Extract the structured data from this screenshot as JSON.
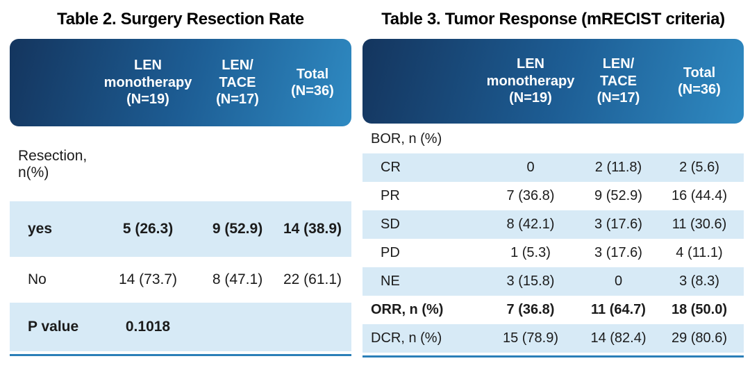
{
  "colors": {
    "header_gradient_start": "#14355e",
    "header_gradient_mid": "#1d5d94",
    "header_gradient_end": "#2f8ac2",
    "row_shaded_bg": "#d7eaf6",
    "header_text": "#ffffff",
    "body_text": "#1b1b1b",
    "accent_line": "#2b7fb8"
  },
  "table2": {
    "title": "Table 2. Surgery Resection Rate",
    "col_headers": [
      "",
      "LEN\nmonotherapy\n(N=19)",
      "LEN/\nTACE\n(N=17)",
      "Total\n(N=36)"
    ],
    "rows": [
      {
        "label": "Resection, n(%)",
        "values": [
          "",
          "",
          ""
        ],
        "bold": false,
        "shaded": false,
        "indent": false
      },
      {
        "label": "yes",
        "values": [
          "5 (26.3)",
          "9 (52.9)",
          "14 (38.9)"
        ],
        "bold": true,
        "shaded": true,
        "indent": true
      },
      {
        "label": "No",
        "values": [
          "14 (73.7)",
          "8 (47.1)",
          "22 (61.1)"
        ],
        "bold": false,
        "shaded": false,
        "indent": true
      },
      {
        "label": "P value",
        "values": [
          "0.1018",
          "",
          ""
        ],
        "bold": true,
        "shaded": true,
        "indent": true
      }
    ]
  },
  "table3": {
    "title": "Table 3. Tumor Response (mRECIST criteria)",
    "col_headers": [
      "",
      "LEN\nmonotherapy\n(N=19)",
      "LEN/\nTACE\n(N=17)",
      "Total\n(N=36)"
    ],
    "rows": [
      {
        "label": "BOR, n (%)",
        "values": [
          "",
          "",
          ""
        ],
        "bold": false,
        "shaded": false,
        "indent": false
      },
      {
        "label": "CR",
        "values": [
          "0",
          "2 (11.8)",
          "2 (5.6)"
        ],
        "bold": false,
        "shaded": true,
        "indent": true
      },
      {
        "label": "PR",
        "values": [
          "7 (36.8)",
          "9 (52.9)",
          "16 (44.4)"
        ],
        "bold": false,
        "shaded": false,
        "indent": true
      },
      {
        "label": "SD",
        "values": [
          "8 (42.1)",
          "3 (17.6)",
          "11 (30.6)"
        ],
        "bold": false,
        "shaded": true,
        "indent": true
      },
      {
        "label": "PD",
        "values": [
          "1 (5.3)",
          "3 (17.6)",
          "4 (11.1)"
        ],
        "bold": false,
        "shaded": false,
        "indent": true
      },
      {
        "label": "NE",
        "values": [
          "3 (15.8)",
          "0",
          "3 (8.3)"
        ],
        "bold": false,
        "shaded": true,
        "indent": true
      },
      {
        "label": "ORR, n (%)",
        "values": [
          "7 (36.8)",
          "11 (64.7)",
          "18 (50.0)"
        ],
        "bold": true,
        "shaded": false,
        "indent": false
      },
      {
        "label": "DCR, n (%)",
        "values": [
          "15 (78.9)",
          "14 (82.4)",
          "29 (80.6)"
        ],
        "bold": false,
        "shaded": true,
        "indent": false
      }
    ]
  }
}
